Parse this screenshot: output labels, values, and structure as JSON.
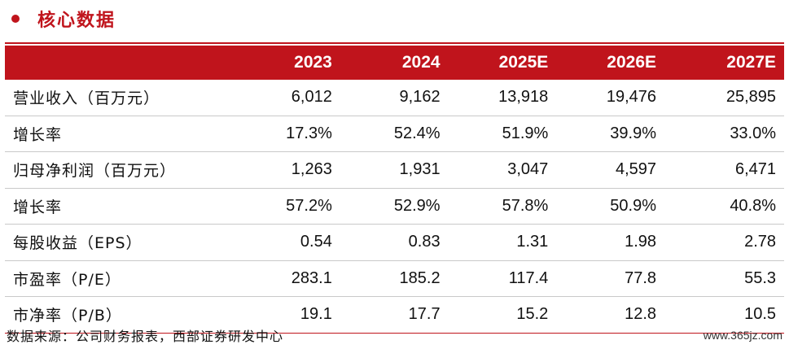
{
  "section": {
    "title": "核心数据"
  },
  "table": {
    "headers": [
      "2023",
      "2024",
      "2025E",
      "2026E",
      "2027E"
    ],
    "rows": [
      {
        "label": "营业收入（百万元）",
        "values": [
          "6,012",
          "9,162",
          "13,918",
          "19,476",
          "25,895"
        ]
      },
      {
        "label": "增长率",
        "values": [
          "17.3%",
          "52.4%",
          "51.9%",
          "39.9%",
          "33.0%"
        ]
      },
      {
        "label": "归母净利润（百万元）",
        "values": [
          "1,263",
          "1,931",
          "3,047",
          "4,597",
          "6,471"
        ]
      },
      {
        "label": "增长率",
        "values": [
          "57.2%",
          "52.9%",
          "57.8%",
          "50.9%",
          "40.8%"
        ]
      },
      {
        "label": "每股收益（EPS）",
        "values": [
          "0.54",
          "0.83",
          "1.31",
          "1.98",
          "2.78"
        ]
      },
      {
        "label": "市盈率（P/E）",
        "values": [
          "283.1",
          "185.2",
          "117.4",
          "77.8",
          "55.3"
        ]
      },
      {
        "label": "市净率（P/B）",
        "values": [
          "19.1",
          "17.7",
          "15.2",
          "12.8",
          "10.5"
        ]
      }
    ]
  },
  "footer": {
    "source": "数据来源：公司财务报表，西部证券研发中心",
    "watermark": "www.365jz.com"
  },
  "colors": {
    "accent": "#c0141c"
  }
}
